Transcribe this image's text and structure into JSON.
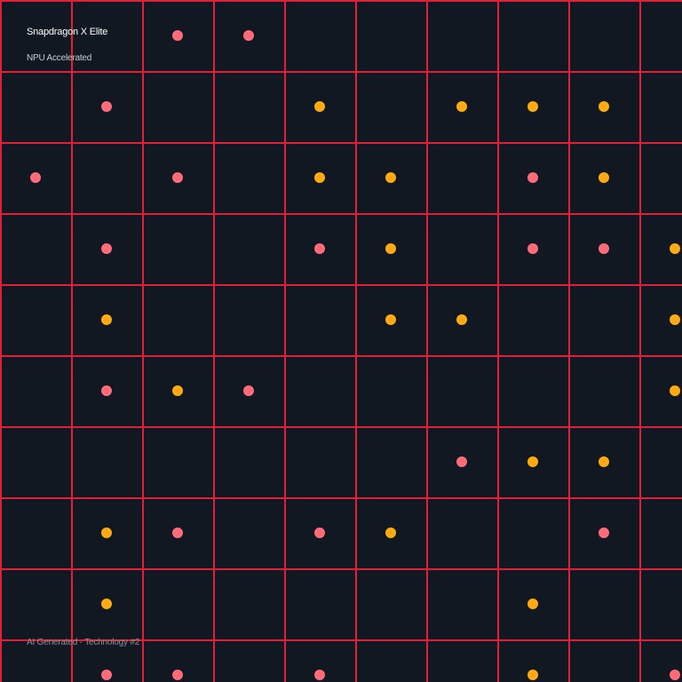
{
  "header": {
    "title": "Snapdragon X Elite",
    "subtitle": "NPU Accelerated"
  },
  "footer": {
    "caption": "AI Generated - Technology #2"
  },
  "colors": {
    "background": "#111822",
    "grid_line": "#e0203a",
    "dot_pink": "#ff6b78",
    "dot_amber": "#ffaa12"
  },
  "dot_grid": {
    "rows": 10,
    "cols": 10,
    "legend": "p = pink dot, o = amber dot, . = empty",
    "pattern": [
      "..pp......",
      ".p..o.ooo.",
      "p.p.oo.po.",
      ".p..po.ppo",
      ".o...oo..o",
      ".pop.....o",
      "......poo.",
      ".op.po..p.",
      ".o.....o..",
      ".pp.p..o.p"
    ]
  }
}
